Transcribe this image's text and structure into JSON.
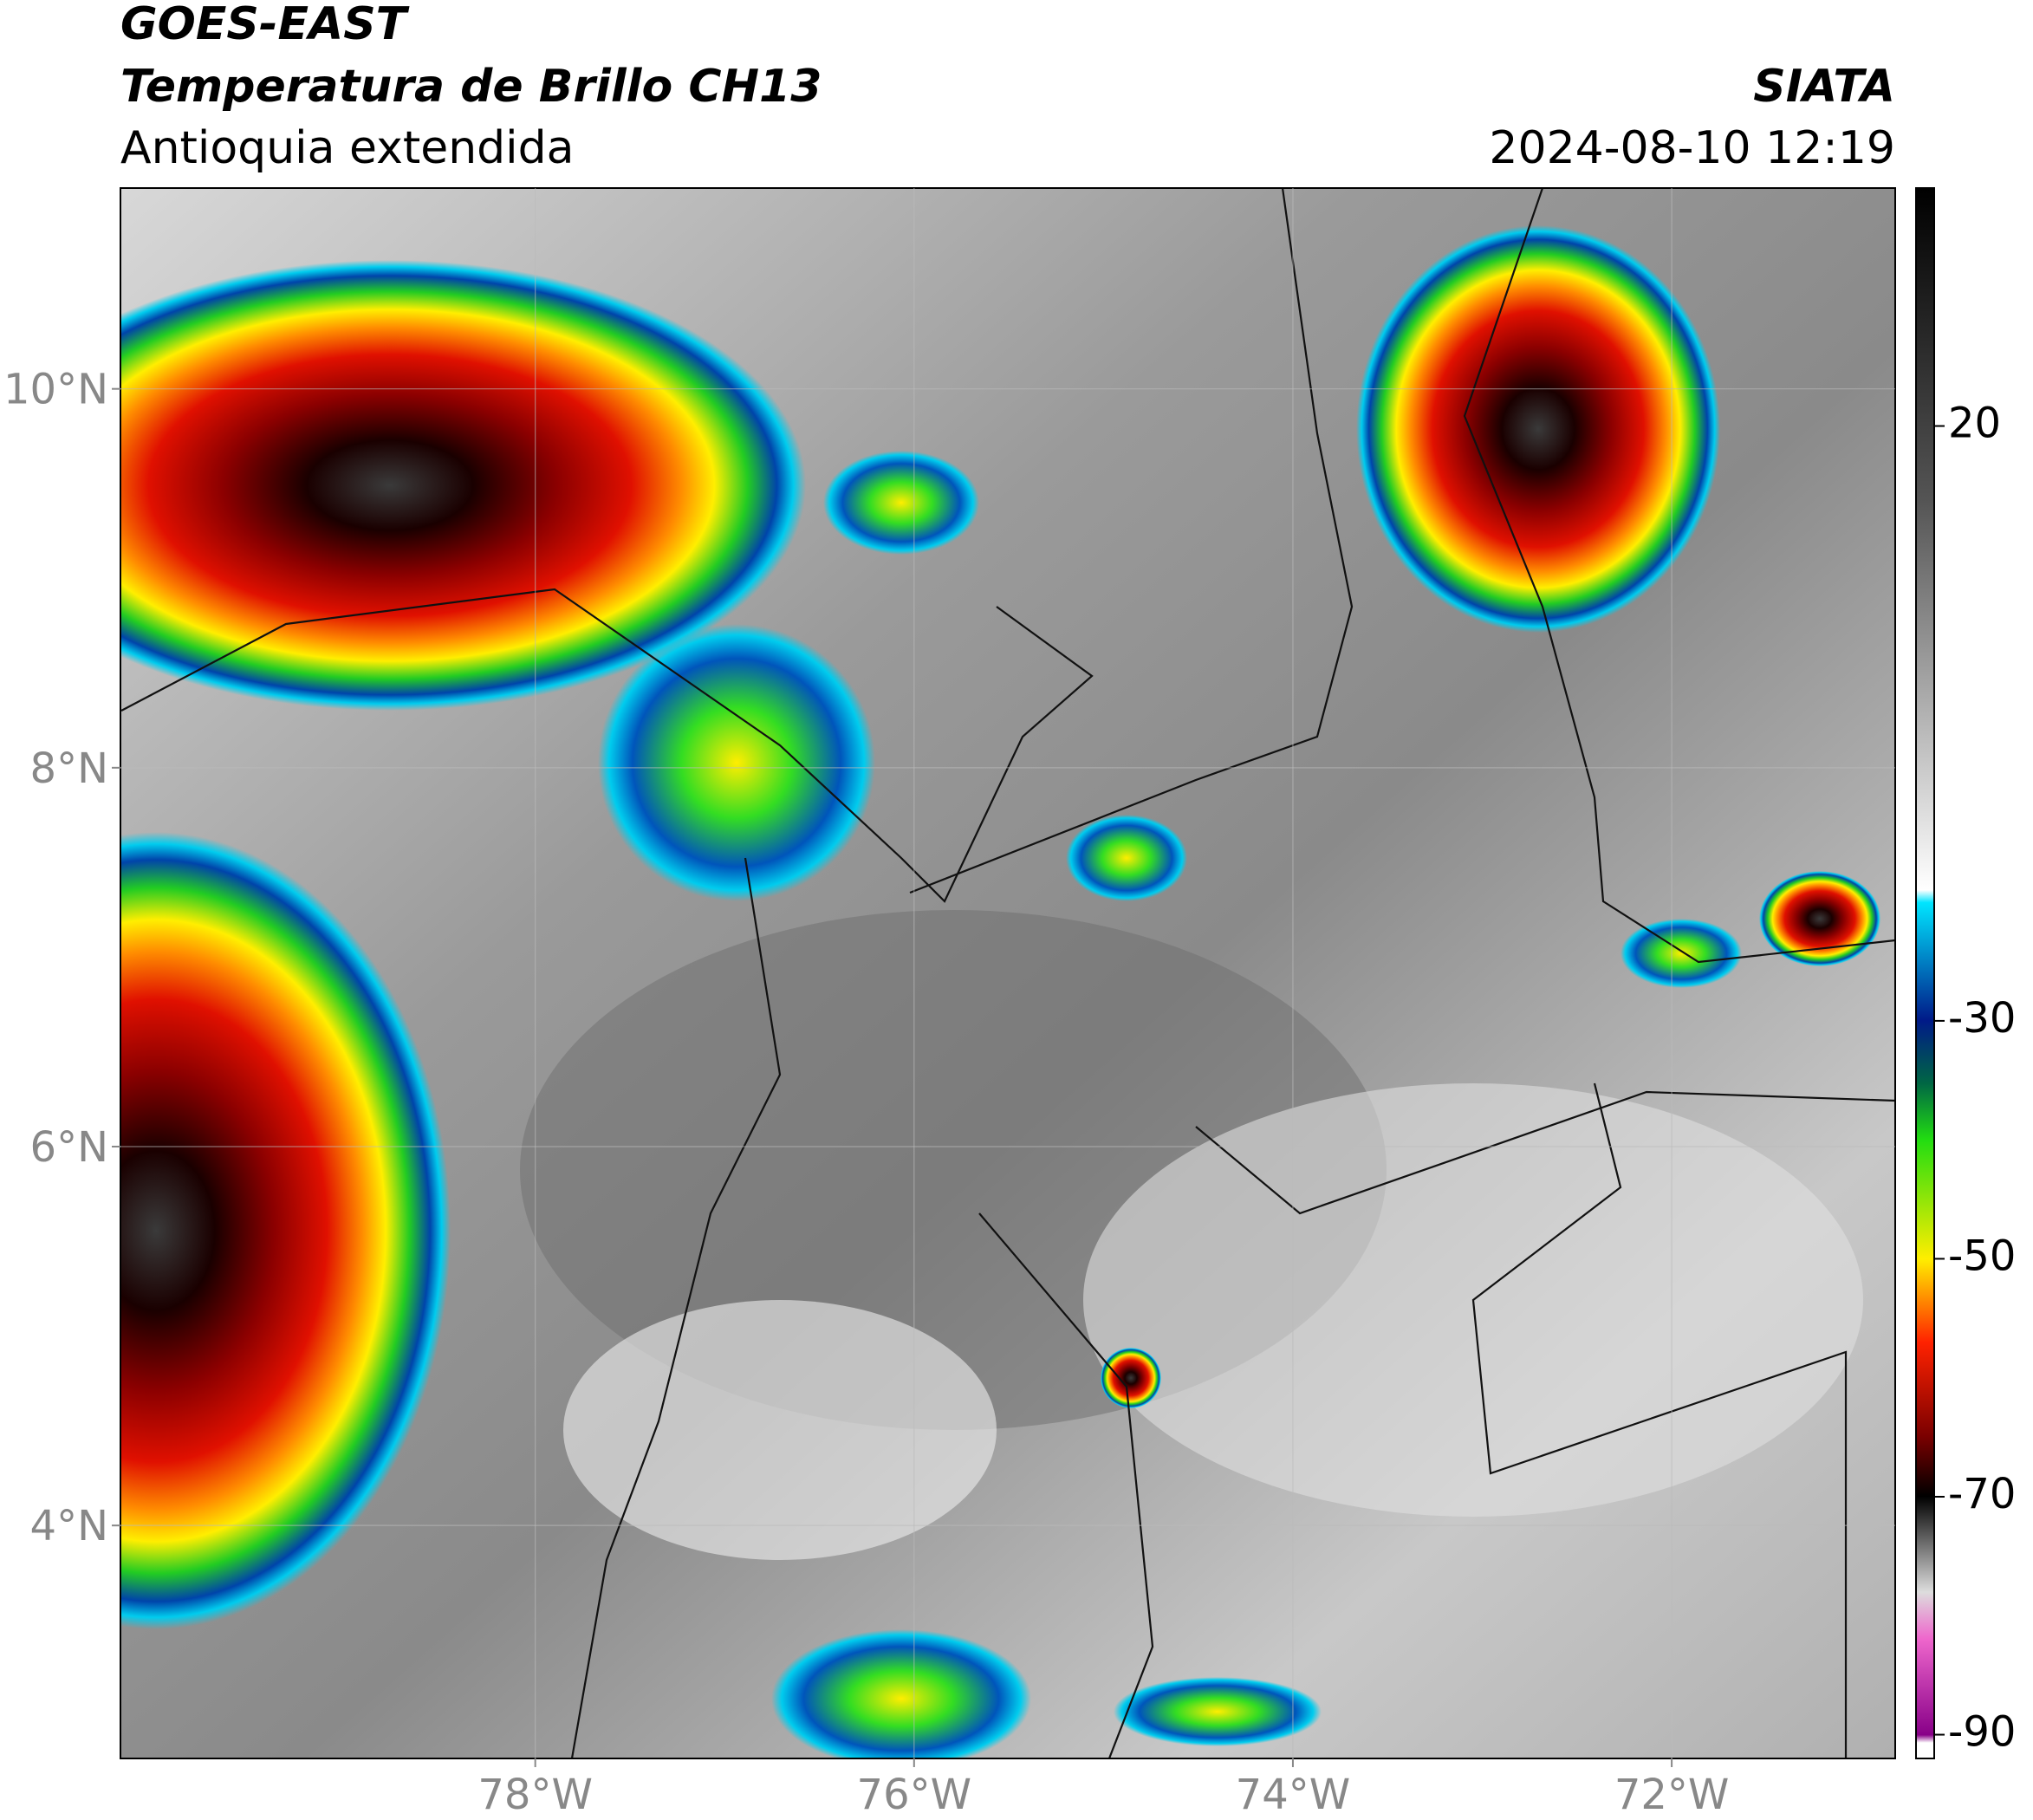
{
  "header": {
    "title": "GOES-EAST",
    "subtitle": "Temperatura de Brillo CH13",
    "region": "Antioquia extendida",
    "source": "SIATA",
    "timestamp": "2024-08-10 12:19"
  },
  "map": {
    "xlim": [
      -80.19,
      -70.82
    ],
    "ylim": [
      2.77,
      11.06
    ],
    "xticks": [
      {
        "value": -78,
        "label": "78°W"
      },
      {
        "value": -76,
        "label": "76°W"
      },
      {
        "value": -74,
        "label": "74°W"
      },
      {
        "value": -72,
        "label": "72°W"
      }
    ],
    "yticks": [
      {
        "value": 4,
        "label": "4°N"
      },
      {
        "value": 6,
        "label": "6°N"
      },
      {
        "value": 8,
        "label": "8°N"
      },
      {
        "value": 10,
        "label": "10°N"
      }
    ],
    "grid": true
  },
  "colorbar": {
    "range": [
      -92,
      40
    ],
    "ticks": [
      -90,
      -70,
      -50,
      -30,
      20
    ]
  }
}
